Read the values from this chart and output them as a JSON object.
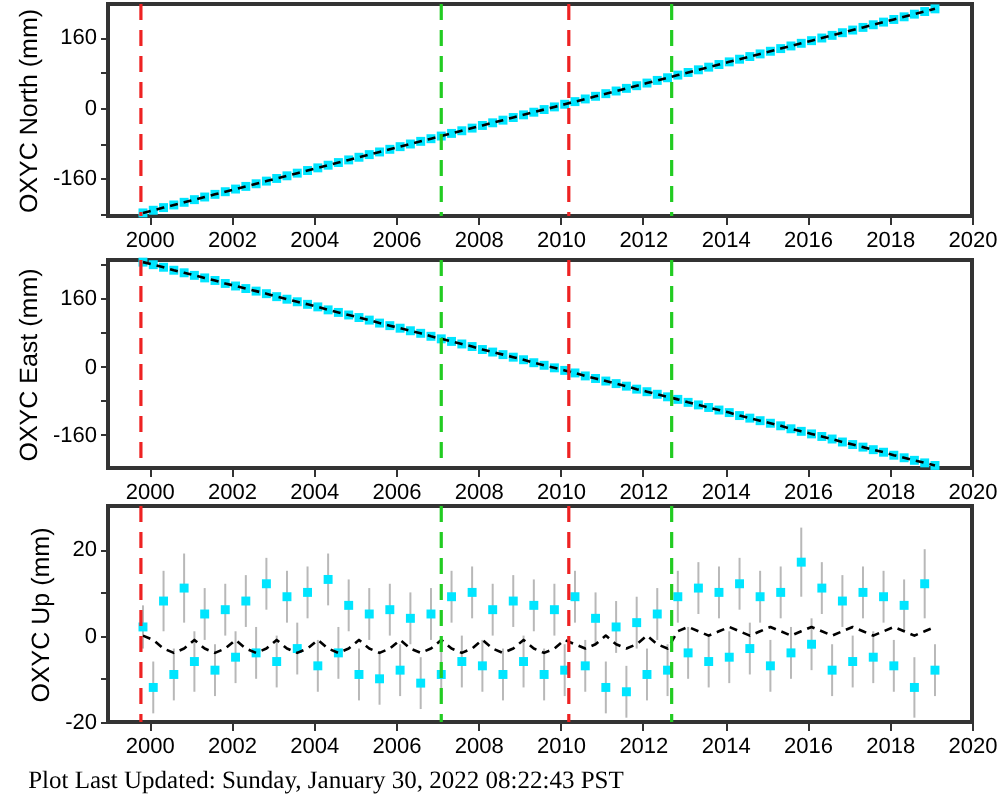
{
  "chart_data": [
    {
      "type": "scatter",
      "ylabel": "OXYC North (mm)",
      "xlim": [
        1999,
        2020
      ],
      "xticks": [
        2000,
        2002,
        2004,
        2006,
        2008,
        2010,
        2012,
        2014,
        2016,
        2018,
        2020
      ],
      "ylim": [
        -245,
        235
      ],
      "yticks": [
        {
          "value": -240,
          "label": null
        },
        -160,
        {
          "value": -80,
          "label": null
        },
        0,
        {
          "value": 80,
          "label": null
        },
        160
      ],
      "x": [
        1999.85,
        2000.1,
        2000.35,
        2000.6,
        2000.85,
        2001.1,
        2001.35,
        2001.6,
        2001.85,
        2002.1,
        2002.35,
        2002.6,
        2002.85,
        2003.1,
        2003.35,
        2003.6,
        2003.85,
        2004.1,
        2004.35,
        2004.6,
        2004.85,
        2005.1,
        2005.35,
        2005.6,
        2005.85,
        2006.1,
        2006.35,
        2006.6,
        2006.85,
        2007.1,
        2007.35,
        2007.6,
        2007.85,
        2008.1,
        2008.35,
        2008.6,
        2008.85,
        2009.1,
        2009.35,
        2009.6,
        2009.85,
        2010.1,
        2010.35,
        2010.6,
        2010.85,
        2011.1,
        2011.35,
        2011.6,
        2011.85,
        2012.1,
        2012.35,
        2012.6,
        2012.85,
        2013.1,
        2013.35,
        2013.6,
        2013.85,
        2014.1,
        2014.35,
        2014.6,
        2014.85,
        2015.1,
        2015.35,
        2015.6,
        2015.85,
        2016.1,
        2016.35,
        2016.6,
        2016.85,
        2017.1,
        2017.35,
        2017.6,
        2017.85,
        2018.1,
        2018.35,
        2018.6,
        2018.85,
        2019.1
      ],
      "series": [
        {
          "marker": "square",
          "color": "#00e5ff",
          "values": [
            -238,
            -232,
            -226,
            -220,
            -214,
            -208,
            -202,
            -196,
            -190,
            -184,
            -178,
            -172,
            -166,
            -160,
            -154,
            -148,
            -142,
            -136,
            -130,
            -124,
            -118,
            -112,
            -106,
            -100,
            -94,
            -88,
            -82,
            -76,
            -70,
            -64,
            -58,
            -52,
            -46,
            -40,
            -34,
            -28,
            -22,
            -16,
            -10,
            -4,
            2,
            8,
            14,
            20,
            26,
            32,
            38,
            44,
            50,
            56,
            62,
            68,
            74,
            80,
            86,
            92,
            98,
            104,
            110,
            116,
            122,
            128,
            134,
            140,
            146,
            152,
            158,
            164,
            170,
            176,
            182,
            188,
            194,
            200,
            206,
            212,
            218,
            224
          ]
        },
        {
          "type": "line",
          "color": "#000000",
          "line_style": "dashed",
          "values": [
            -238,
            -232,
            -226,
            -220,
            -214,
            -208,
            -202,
            -196,
            -190,
            -184,
            -178,
            -172,
            -166,
            -160,
            -154,
            -148,
            -142,
            -136,
            -130,
            -124,
            -118,
            -112,
            -106,
            -100,
            -94,
            -88,
            -82,
            -76,
            -70,
            -64,
            -58,
            -52,
            -46,
            -40,
            -34,
            -28,
            -22,
            -16,
            -10,
            -4,
            2,
            8,
            14,
            20,
            26,
            32,
            38,
            44,
            50,
            56,
            62,
            68,
            74,
            80,
            86,
            92,
            98,
            104,
            110,
            116,
            122,
            128,
            134,
            140,
            146,
            152,
            158,
            164,
            170,
            176,
            182,
            188,
            194,
            200,
            206,
            212,
            218,
            224
          ]
        }
      ],
      "ref_lines": [
        {
          "axis": "x",
          "value": 1999.8,
          "color": "#ee2222",
          "line_style": "dashed"
        },
        {
          "axis": "x",
          "value": 2007.1,
          "color": "#22cc22",
          "line_style": "dashed"
        },
        {
          "axis": "x",
          "value": 2010.2,
          "color": "#ee2222",
          "line_style": "dashed"
        },
        {
          "axis": "x",
          "value": 2012.7,
          "color": "#22cc22",
          "line_style": "dashed"
        }
      ]
    },
    {
      "type": "scatter",
      "ylabel": "OXYC East (mm)",
      "xlim": [
        1999,
        2020
      ],
      "xticks": [
        2000,
        2002,
        2004,
        2006,
        2008,
        2010,
        2012,
        2014,
        2016,
        2018,
        2020
      ],
      "ylim": [
        -238,
        250
      ],
      "yticks": [
        -160,
        {
          "value": -80,
          "label": null
        },
        0,
        {
          "value": 80,
          "label": null
        },
        160,
        {
          "value": 240,
          "label": null
        }
      ],
      "x": [
        1999.85,
        2000.1,
        2000.35,
        2000.6,
        2000.85,
        2001.1,
        2001.35,
        2001.6,
        2001.85,
        2002.1,
        2002.35,
        2002.6,
        2002.85,
        2003.1,
        2003.35,
        2003.6,
        2003.85,
        2004.1,
        2004.35,
        2004.6,
        2004.85,
        2005.1,
        2005.35,
        2005.6,
        2005.85,
        2006.1,
        2006.35,
        2006.6,
        2006.85,
        2007.1,
        2007.35,
        2007.6,
        2007.85,
        2008.1,
        2008.35,
        2008.6,
        2008.85,
        2009.1,
        2009.35,
        2009.6,
        2009.85,
        2010.1,
        2010.35,
        2010.6,
        2010.85,
        2011.1,
        2011.35,
        2011.6,
        2011.85,
        2012.1,
        2012.35,
        2012.6,
        2012.85,
        2013.1,
        2013.35,
        2013.6,
        2013.85,
        2014.1,
        2014.35,
        2014.6,
        2014.85,
        2015.1,
        2015.35,
        2015.6,
        2015.85,
        2016.1,
        2016.35,
        2016.6,
        2016.85,
        2017.1,
        2017.35,
        2017.6,
        2017.85,
        2018.1,
        2018.35,
        2018.6,
        2018.85,
        2019.1
      ],
      "series": [
        {
          "marker": "square",
          "color": "#00e5ff",
          "values": [
            245,
            239,
            233,
            226,
            220,
            214,
            208,
            202,
            195,
            189,
            183,
            177,
            171,
            164,
            158,
            152,
            146,
            140,
            133,
            127,
            121,
            115,
            109,
            102,
            96,
            90,
            84,
            78,
            71,
            65,
            59,
            53,
            47,
            40,
            34,
            28,
            22,
            16,
            9,
            3,
            -3,
            -9,
            -15,
            -22,
            -28,
            -34,
            -40,
            -46,
            -53,
            -59,
            -65,
            -71,
            -77,
            -84,
            -90,
            -96,
            -102,
            -108,
            -115,
            -121,
            -127,
            -133,
            -139,
            -146,
            -152,
            -158,
            -164,
            -170,
            -177,
            -183,
            -189,
            -195,
            -201,
            -208,
            -214,
            -220,
            -226,
            -232
          ]
        },
        {
          "type": "line",
          "color": "#000000",
          "line_style": "dashed",
          "values": [
            245,
            239,
            233,
            226,
            220,
            214,
            208,
            202,
            195,
            189,
            183,
            177,
            171,
            164,
            158,
            152,
            146,
            140,
            133,
            127,
            121,
            115,
            109,
            102,
            96,
            90,
            84,
            78,
            71,
            65,
            59,
            53,
            47,
            40,
            34,
            28,
            22,
            16,
            9,
            3,
            -3,
            -9,
            -15,
            -22,
            -28,
            -34,
            -40,
            -46,
            -53,
            -59,
            -65,
            -71,
            -77,
            -84,
            -90,
            -96,
            -102,
            -108,
            -115,
            -121,
            -127,
            -133,
            -139,
            -146,
            -152,
            -158,
            -164,
            -170,
            -177,
            -183,
            -189,
            -195,
            -201,
            -208,
            -214,
            -220,
            -226,
            -232
          ]
        }
      ],
      "ref_lines": [
        {
          "axis": "x",
          "value": 1999.8,
          "color": "#ee2222",
          "line_style": "dashed"
        },
        {
          "axis": "x",
          "value": 2007.1,
          "color": "#22cc22",
          "line_style": "dashed"
        },
        {
          "axis": "x",
          "value": 2010.2,
          "color": "#ee2222",
          "line_style": "dashed"
        },
        {
          "axis": "x",
          "value": 2012.7,
          "color": "#22cc22",
          "line_style": "dashed"
        }
      ]
    },
    {
      "type": "scatter",
      "ylabel": "OXYC Up (mm)",
      "xlim": [
        1999,
        2020
      ],
      "xticks": [
        2000,
        2002,
        2004,
        2006,
        2008,
        2010,
        2012,
        2014,
        2016,
        2018,
        2020
      ],
      "ylim": [
        -20,
        30
      ],
      "yticks": [
        -20,
        {
          "value": -10,
          "label": null
        },
        0,
        {
          "value": 10,
          "label": null
        },
        20
      ],
      "x": [
        1999.85,
        2000.1,
        2000.35,
        2000.6,
        2000.85,
        2001.1,
        2001.35,
        2001.6,
        2001.85,
        2002.1,
        2002.35,
        2002.6,
        2002.85,
        2003.1,
        2003.35,
        2003.6,
        2003.85,
        2004.1,
        2004.35,
        2004.6,
        2004.85,
        2005.1,
        2005.35,
        2005.6,
        2005.85,
        2006.1,
        2006.35,
        2006.6,
        2006.85,
        2007.1,
        2007.35,
        2007.6,
        2007.85,
        2008.1,
        2008.35,
        2008.6,
        2008.85,
        2009.1,
        2009.35,
        2009.6,
        2009.85,
        2010.1,
        2010.35,
        2010.6,
        2010.85,
        2011.1,
        2011.35,
        2011.6,
        2011.85,
        2012.1,
        2012.35,
        2012.6,
        2012.85,
        2013.1,
        2013.35,
        2013.6,
        2013.85,
        2014.1,
        2014.35,
        2014.6,
        2014.85,
        2015.1,
        2015.35,
        2015.6,
        2015.85,
        2016.1,
        2016.35,
        2016.6,
        2016.85,
        2017.1,
        2017.35,
        2017.6,
        2017.85,
        2018.1,
        2018.35,
        2018.6,
        2018.85,
        2019.1
      ],
      "series": [
        {
          "marker": "square",
          "color": "#00e5ff",
          "values": [
            2,
            -12,
            8,
            -9,
            11,
            -6,
            5,
            -8,
            6,
            -5,
            8,
            -4,
            12,
            -6,
            9,
            -3,
            10,
            -7,
            13,
            -4,
            7,
            -9,
            5,
            -10,
            6,
            -8,
            4,
            -11,
            5,
            -9,
            9,
            -6,
            10,
            -7,
            6,
            -9,
            8,
            -6,
            7,
            -9,
            6,
            -8,
            9,
            -7,
            4,
            -12,
            2,
            -13,
            3,
            -9,
            5,
            -8,
            9,
            -4,
            11,
            -6,
            10,
            -5,
            12,
            -3,
            9,
            -7,
            10,
            -4,
            17,
            -2,
            11,
            -8,
            8,
            -6,
            10,
            -5,
            9,
            -7,
            7,
            -12,
            12,
            -8
          ],
          "errors": [
            5,
            6,
            7,
            6,
            8,
            7,
            6,
            6,
            6,
            6,
            6,
            6,
            6,
            6,
            6,
            6,
            6,
            6,
            6,
            6,
            6,
            6,
            6,
            6,
            6,
            6,
            6,
            6,
            6,
            6,
            6,
            6,
            6,
            6,
            6,
            6,
            6,
            6,
            6,
            6,
            6,
            6,
            6,
            6,
            6,
            6,
            6,
            6,
            6,
            6,
            6,
            6,
            6,
            6,
            6,
            6,
            6,
            6,
            6,
            6,
            6,
            6,
            6,
            6,
            8,
            6,
            6,
            6,
            6,
            6,
            6,
            6,
            6,
            6,
            6,
            7,
            8,
            6
          ]
        },
        {
          "type": "line",
          "color": "#000000",
          "line_style": "dashed",
          "values": [
            0,
            -1,
            -3,
            -4,
            -3,
            -1,
            -3,
            -4,
            -3,
            -1,
            -3,
            -4,
            -3,
            -1,
            -3,
            -4,
            -3,
            -1,
            -3,
            -4,
            -3,
            -1,
            -3,
            -4,
            -3,
            -1,
            -3,
            -4,
            -3,
            -1,
            -3,
            -4,
            -3,
            -1,
            -3,
            -4,
            -3,
            -1,
            -3,
            -4,
            -3,
            -1,
            -2,
            -3,
            -2,
            0,
            -2,
            -3,
            -2,
            0,
            -2,
            -3,
            1,
            2,
            1,
            0,
            1,
            2,
            1,
            0,
            1,
            2,
            1,
            0,
            1,
            2,
            1,
            0,
            1,
            2,
            1,
            0,
            1,
            2,
            1,
            0,
            1,
            2
          ]
        }
      ],
      "ref_lines": [
        {
          "axis": "x",
          "value": 1999.8,
          "color": "#ee2222",
          "line_style": "dashed"
        },
        {
          "axis": "x",
          "value": 2007.1,
          "color": "#22cc22",
          "line_style": "dashed"
        },
        {
          "axis": "x",
          "value": 2010.2,
          "color": "#ee2222",
          "line_style": "dashed"
        },
        {
          "axis": "x",
          "value": 2012.7,
          "color": "#22cc22",
          "line_style": "dashed"
        }
      ],
      "annotations": [
        "Plot Last Updated:   Sunday, January 30, 2022 08:22:43 PST"
      ]
    }
  ]
}
